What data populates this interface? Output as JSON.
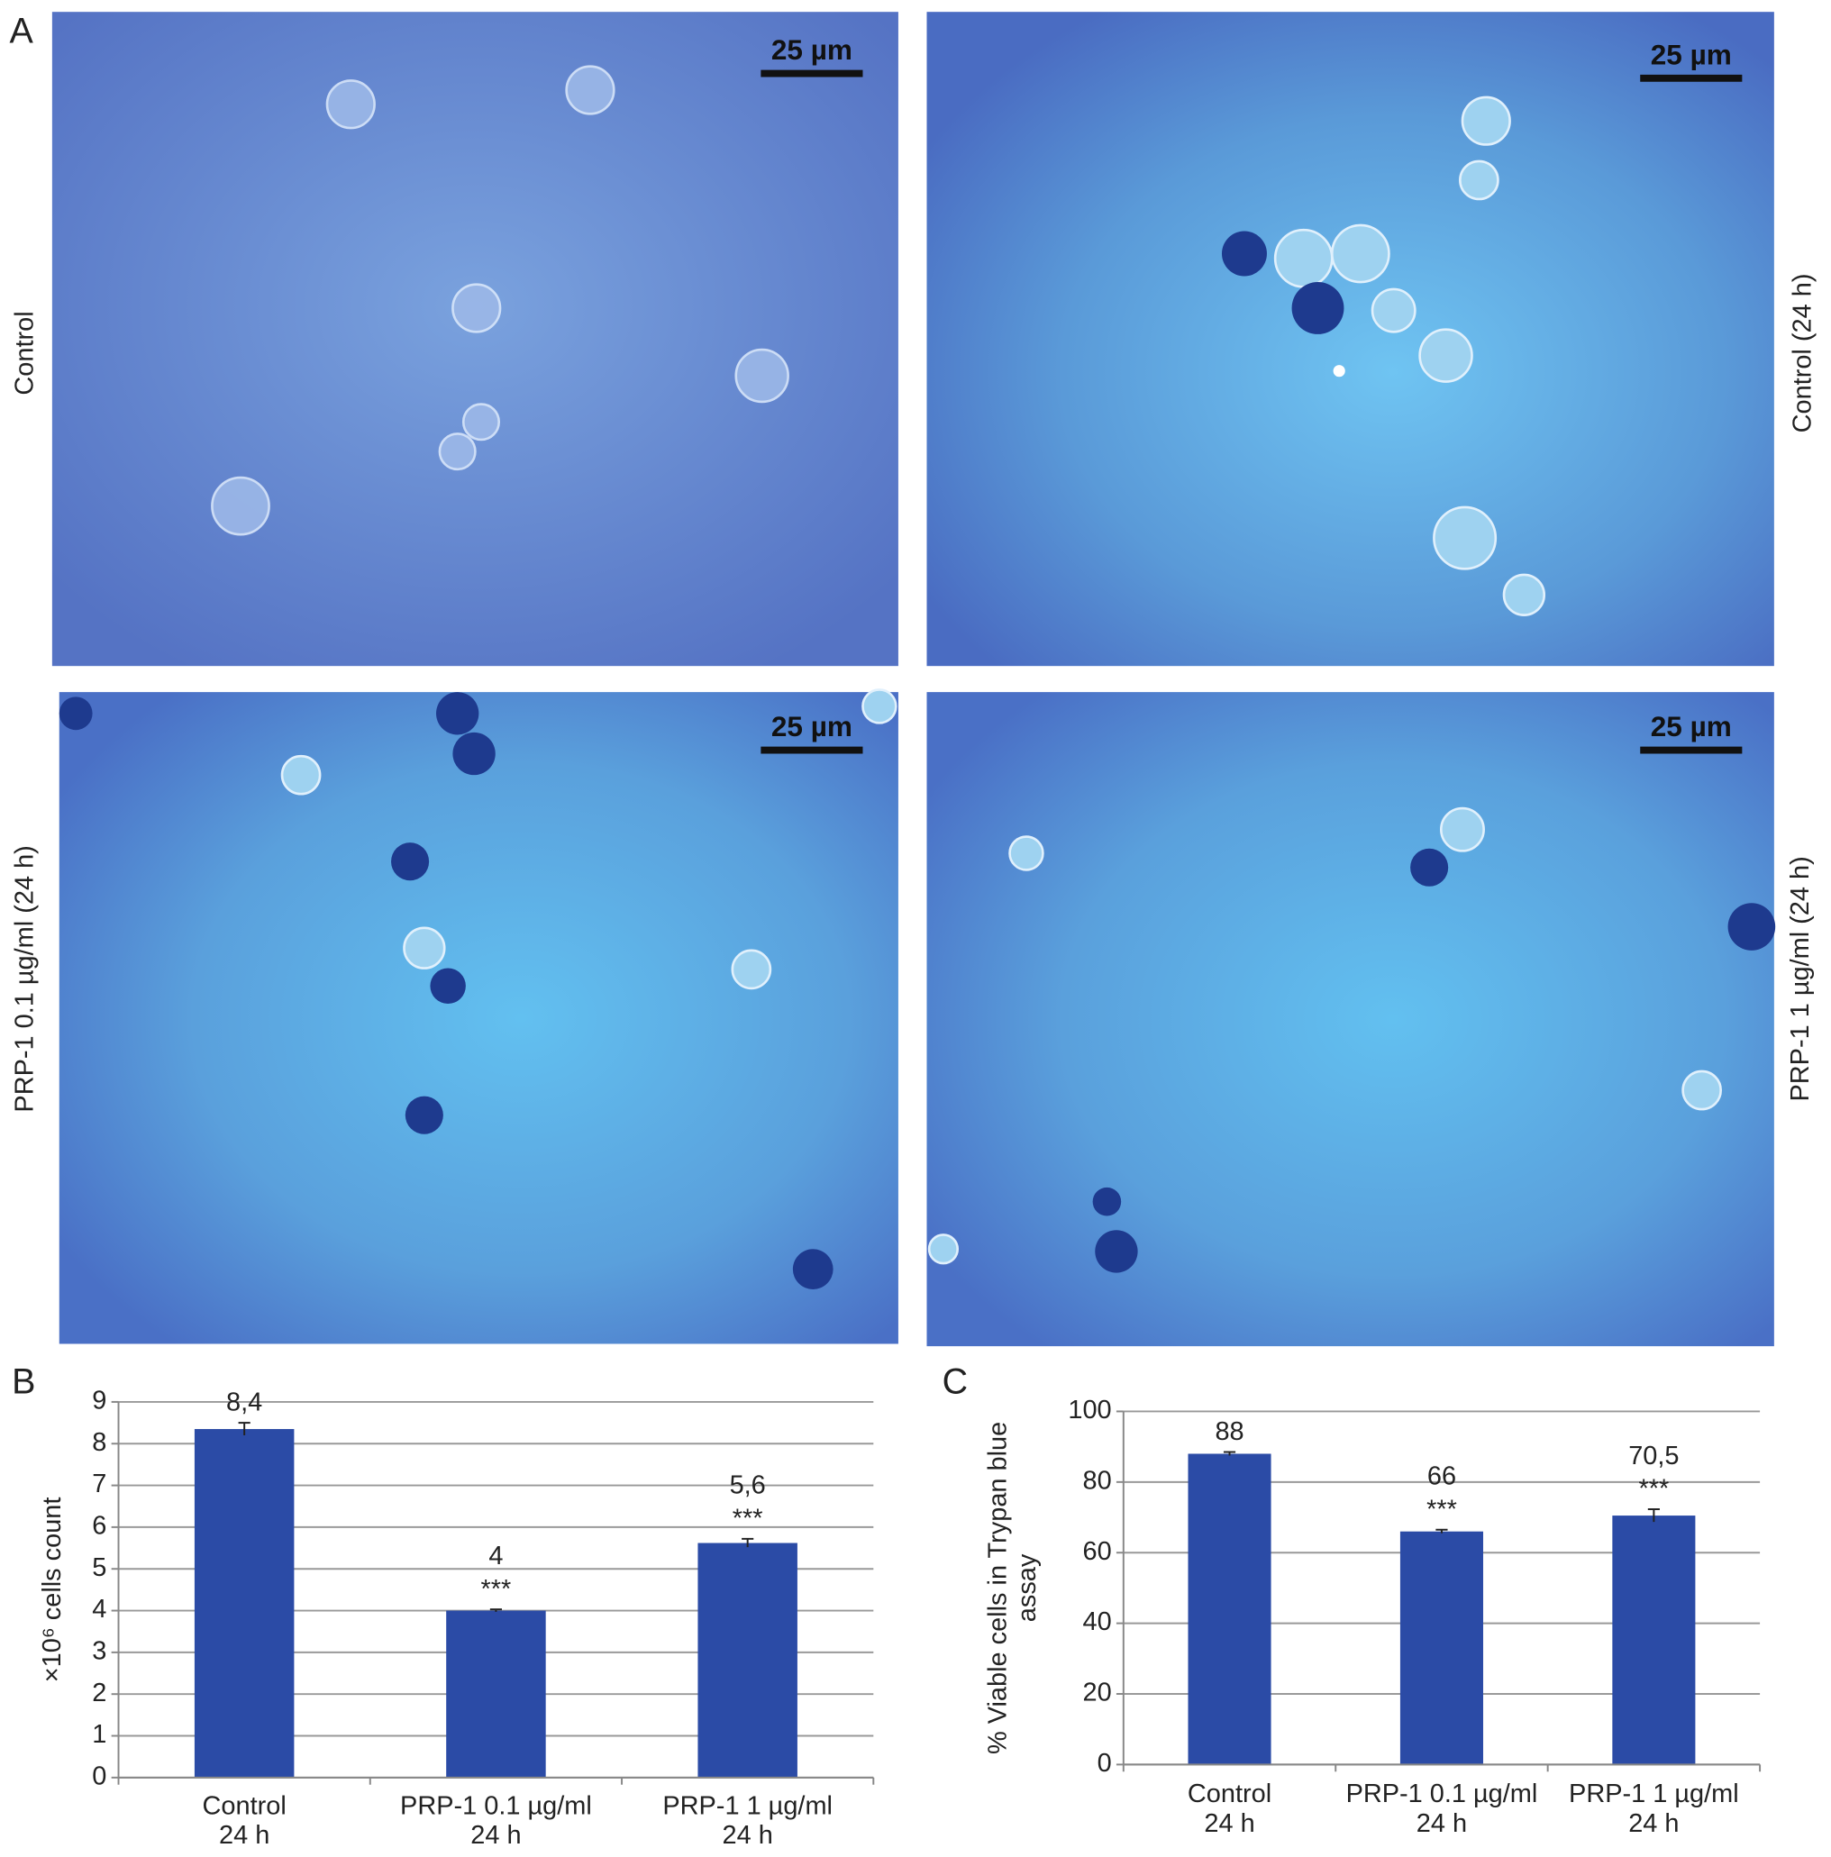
{
  "panel_labels": [
    "A",
    "B",
    "C"
  ],
  "micrographs": [
    {
      "label": "Control",
      "scale_bar": "25 µm"
    },
    {
      "label": "Control (24 h)",
      "scale_bar": "25 µm"
    },
    {
      "label": "PRP-1 0.1 µg/ml (24 h)",
      "scale_bar": "25 µm"
    },
    {
      "label": "PRP-1 1 µg/ml (24 h)",
      "scale_bar": "25 µm"
    }
  ],
  "chart_data": [
    {
      "type": "bar",
      "y_label": "×10⁶ cells count",
      "categories": [
        [
          "Control",
          "24 h"
        ],
        [
          "PRP-1 0.1 µg/ml",
          "24 h"
        ],
        [
          "PRP-1 1 µg/ml",
          "24 h"
        ]
      ],
      "values": [
        8.35,
        4.0,
        5.62
      ],
      "value_labels": [
        "8,4",
        "4",
        "5,6"
      ],
      "errors": [
        0.15,
        0.03,
        0.1
      ],
      "significance": [
        null,
        "***",
        "***"
      ],
      "color": "#2b4ba6",
      "ylim": [
        0,
        9
      ],
      "yticks": [
        0,
        1,
        2,
        3,
        4,
        5,
        6,
        7,
        8,
        9
      ],
      "grid": true
    },
    {
      "type": "bar",
      "y_label": [
        "% Viable cells in Trypan blue",
        "assay"
      ],
      "categories": [
        [
          "Control",
          "24 h"
        ],
        [
          "PRP-1 0.1 µg/ml",
          "24 h"
        ],
        [
          "PRP-1 1 µg/ml",
          "24 h"
        ]
      ],
      "values": [
        88,
        66,
        70.5
      ],
      "value_labels": [
        "88",
        "66",
        "70,5"
      ],
      "errors": [
        0.5,
        0.5,
        1.8
      ],
      "significance": [
        null,
        "***",
        "***"
      ],
      "color": "#2b4ba6",
      "ylim": [
        0,
        100
      ],
      "yticks": [
        0,
        20,
        40,
        60,
        80,
        100
      ],
      "grid": true
    }
  ]
}
